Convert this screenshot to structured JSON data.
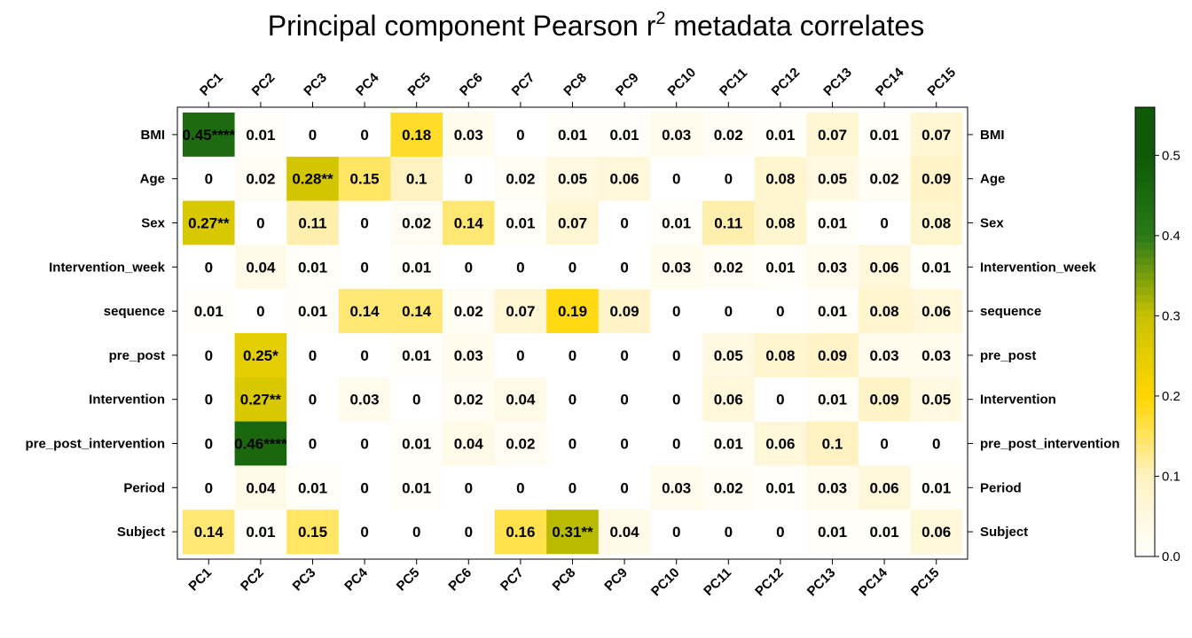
{
  "chart_data": {
    "type": "heatmap",
    "title": "Principal component Pearson r",
    "title_superscript": "2",
    "title_suffix": " metadata correlates",
    "x_categories": [
      "PC1",
      "PC2",
      "PC3",
      "PC4",
      "PC5",
      "PC6",
      "PC7",
      "PC8",
      "PC9",
      "PC10",
      "PC11",
      "PC12",
      "PC13",
      "PC14",
      "PC15"
    ],
    "y_categories": [
      "BMI",
      "Age",
      "Sex",
      "Intervention_week",
      "sequence",
      "pre_post",
      "Intervention",
      "pre_post_intervention",
      "Period",
      "Subject"
    ],
    "values": [
      [
        0.45,
        0.01,
        0,
        0,
        0.18,
        0.03,
        0,
        0.01,
        0.01,
        0.03,
        0.02,
        0.01,
        0.07,
        0.01,
        0.07
      ],
      [
        0,
        0.02,
        0.28,
        0.15,
        0.1,
        0,
        0.02,
        0.05,
        0.06,
        0,
        0,
        0.08,
        0.05,
        0.02,
        0.09
      ],
      [
        0.27,
        0,
        0.11,
        0,
        0.02,
        0.14,
        0.01,
        0.07,
        0,
        0.01,
        0.11,
        0.08,
        0.01,
        0,
        0.08
      ],
      [
        0,
        0.04,
        0.01,
        0,
        0.01,
        0,
        0,
        0,
        0,
        0.03,
        0.02,
        0.01,
        0.03,
        0.06,
        0.01
      ],
      [
        0.01,
        0,
        0.01,
        0.14,
        0.14,
        0.02,
        0.07,
        0.19,
        0.09,
        0,
        0,
        0,
        0.01,
        0.08,
        0.06
      ],
      [
        0,
        0.25,
        0,
        0,
        0.01,
        0.03,
        0,
        0,
        0,
        0,
        0.05,
        0.08,
        0.09,
        0.03,
        0.03
      ],
      [
        0,
        0.27,
        0,
        0.03,
        0,
        0.02,
        0.04,
        0,
        0,
        0,
        0.06,
        0,
        0.01,
        0.09,
        0.05
      ],
      [
        0,
        0.46,
        0,
        0,
        0.01,
        0.04,
        0.02,
        0,
        0,
        0,
        0.01,
        0.06,
        0.1,
        0,
        0
      ],
      [
        0,
        0.04,
        0.01,
        0,
        0.01,
        0,
        0,
        0,
        0,
        0.03,
        0.02,
        0.01,
        0.03,
        0.06,
        0.01
      ],
      [
        0.14,
        0.01,
        0.15,
        0,
        0,
        0,
        0.16,
        0.31,
        0.04,
        0,
        0,
        0,
        0.01,
        0.01,
        0.06
      ]
    ],
    "labels": [
      [
        "0.45****",
        "0.01",
        "0",
        "0",
        "0.18",
        "0.03",
        "0",
        "0.01",
        "0.01",
        "0.03",
        "0.02",
        "0.01",
        "0.07",
        "0.01",
        "0.07"
      ],
      [
        "0",
        "0.02",
        "0.28**",
        "0.15",
        "0.1",
        "0",
        "0.02",
        "0.05",
        "0.06",
        "0",
        "0",
        "0.08",
        "0.05",
        "0.02",
        "0.09"
      ],
      [
        "0.27**",
        "0",
        "0.11",
        "0",
        "0.02",
        "0.14",
        "0.01",
        "0.07",
        "0",
        "0.01",
        "0.11",
        "0.08",
        "0.01",
        "0",
        "0.08"
      ],
      [
        "0",
        "0.04",
        "0.01",
        "0",
        "0.01",
        "0",
        "0",
        "0",
        "0",
        "0.03",
        "0.02",
        "0.01",
        "0.03",
        "0.06",
        "0.01"
      ],
      [
        "0.01",
        "0",
        "0.01",
        "0.14",
        "0.14",
        "0.02",
        "0.07",
        "0.19",
        "0.09",
        "0",
        "0",
        "0",
        "0.01",
        "0.08",
        "0.06"
      ],
      [
        "0",
        "0.25*",
        "0",
        "0",
        "0.01",
        "0.03",
        "0",
        "0",
        "0",
        "0",
        "0.05",
        "0.08",
        "0.09",
        "0.03",
        "0.03"
      ],
      [
        "0",
        "0.27**",
        "0",
        "0.03",
        "0",
        "0.02",
        "0.04",
        "0",
        "0",
        "0",
        "0.06",
        "0",
        "0.01",
        "0.09",
        "0.05"
      ],
      [
        "0",
        "0.46****",
        "0",
        "0",
        "0.01",
        "0.04",
        "0.02",
        "0",
        "0",
        "0",
        "0.01",
        "0.06",
        "0.1",
        "0",
        "0"
      ],
      [
        "0",
        "0.04",
        "0.01",
        "0",
        "0.01",
        "0",
        "0",
        "0",
        "0",
        "0.03",
        "0.02",
        "0.01",
        "0.03",
        "0.06",
        "0.01"
      ],
      [
        "0.14",
        "0.01",
        "0.15",
        "0",
        "0",
        "0",
        "0.16",
        "0.31**",
        "0.04",
        "0",
        "0",
        "0",
        "0.01",
        "0.01",
        "0.06"
      ]
    ],
    "colorbar": {
      "range": [
        0,
        0.56
      ],
      "ticks": [
        0.0,
        0.1,
        0.2,
        0.3,
        0.4,
        0.5
      ],
      "tick_labels": [
        "0.0",
        "0.1",
        "0.2",
        "0.3",
        "0.4",
        "0.5"
      ],
      "colors": [
        "#ffffff",
        "#fff2c2",
        "#ffd700",
        "#c8c200",
        "#2a7a18",
        "#0f5a08"
      ]
    }
  }
}
